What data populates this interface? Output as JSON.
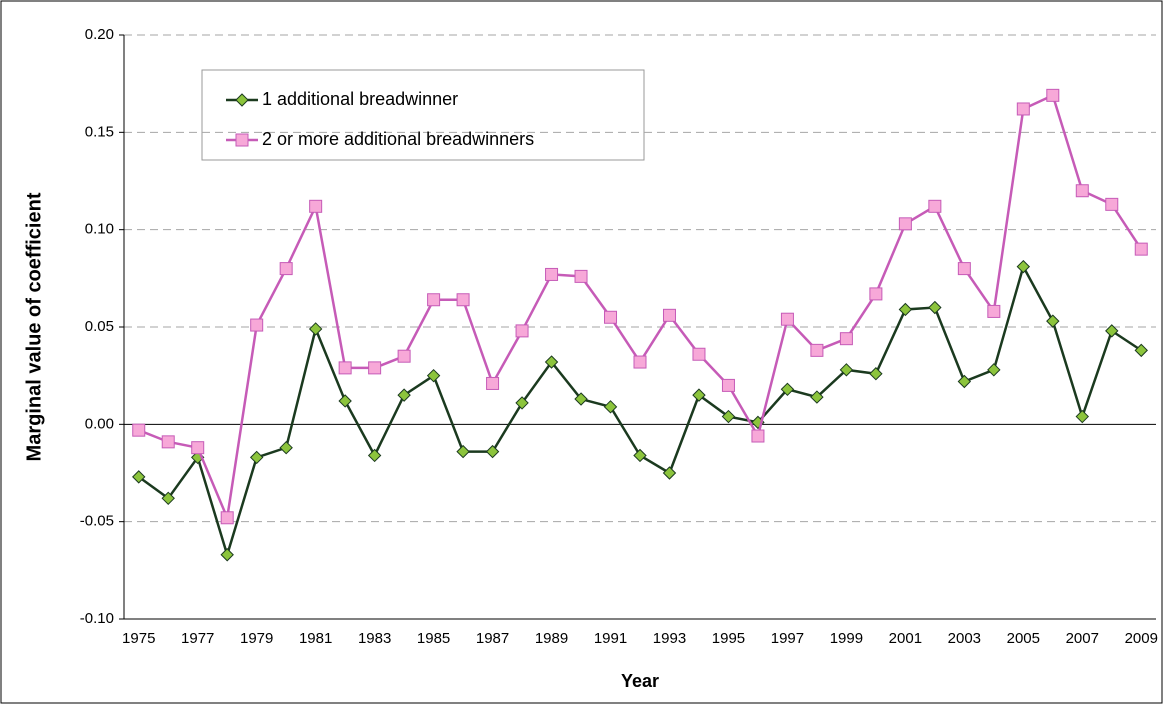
{
  "chart_data": {
    "type": "line",
    "y_label": "Marginal value of coefficient",
    "x_label": "Year",
    "categories": [
      "1975",
      null,
      "1977",
      null,
      "1979",
      null,
      "1981",
      null,
      "1983",
      null,
      "1985",
      null,
      "1987",
      null,
      "1989",
      null,
      "1991",
      null,
      "1993",
      null,
      "1995",
      null,
      "1997",
      null,
      "1999",
      null,
      "2001",
      null,
      "2003",
      null,
      "2005",
      null,
      "2007",
      null,
      "2009"
    ],
    "series": [
      {
        "name": "1 additional breadwinner",
        "color": "#1b3a1f",
        "marker": "diamond",
        "marker_color": "#8cc43c",
        "values": [
          -0.027,
          -0.038,
          -0.017,
          -0.067,
          -0.017,
          -0.012,
          0.049,
          0.012,
          -0.016,
          0.015,
          0.025,
          -0.014,
          -0.014,
          0.011,
          0.032,
          0.013,
          0.009,
          -0.016,
          -0.025,
          0.015,
          0.004,
          0.001,
          0.018,
          0.014,
          0.028,
          0.026,
          0.059,
          0.06,
          0.022,
          0.028,
          0.081,
          0.053,
          0.004,
          0.048,
          0.038
        ]
      },
      {
        "name": "2 or more additional breadwinners",
        "color": "#c65bb7",
        "marker": "square",
        "marker_color": "#f7a8d8",
        "values": [
          -0.003,
          -0.009,
          -0.012,
          -0.048,
          0.051,
          0.08,
          0.112,
          0.029,
          0.029,
          0.035,
          0.064,
          0.064,
          0.021,
          0.048,
          0.077,
          0.076,
          0.055,
          0.032,
          0.056,
          0.036,
          0.02,
          -0.006,
          0.054,
          0.038,
          0.044,
          0.067,
          0.103,
          0.112,
          0.08,
          0.058,
          0.162,
          0.169,
          0.12,
          0.113,
          0.09
        ]
      }
    ],
    "ylim": [
      -0.1,
      0.2
    ],
    "yticks": [
      {
        "value": -0.1,
        "label": "-0.10"
      },
      {
        "value": -0.05,
        "label": "-0.05"
      },
      {
        "value": 0,
        "label": "0.00"
      },
      {
        "value": 0.05,
        "label": "0.05"
      },
      {
        "value": 0.1,
        "label": "0.10"
      },
      {
        "value": 0.15,
        "label": "0.15"
      },
      {
        "value": 0.2,
        "label": "0.20"
      }
    ],
    "grid": true
  }
}
